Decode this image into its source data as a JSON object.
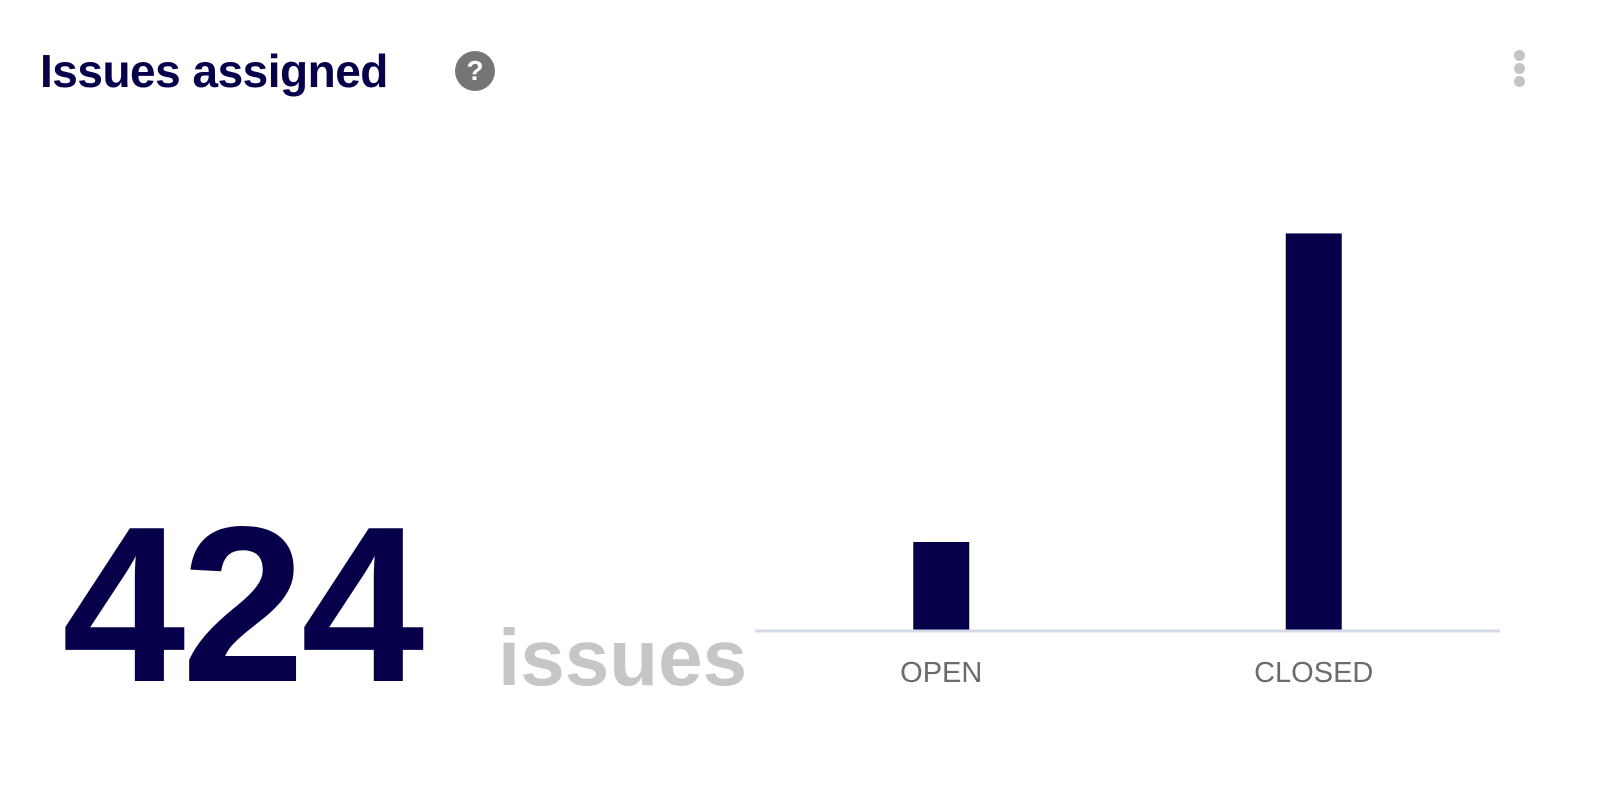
{
  "header": {
    "title": "Issues assigned",
    "help_icon": "question-circle-icon",
    "menu_icon": "kebab-menu-icon"
  },
  "summary": {
    "total": "424",
    "unit": "issues"
  },
  "colors": {
    "bar": "#06004b",
    "baseline": "#d3dae8",
    "label": "#6b6b6b",
    "unit": "#c6c6c6"
  },
  "chart_data": {
    "type": "bar",
    "categories": [
      "OPEN",
      "CLOSED"
    ],
    "values": [
      77,
      347
    ],
    "title": "",
    "xlabel": "",
    "ylabel": "",
    "ylim": [
      0,
      385
    ],
    "grid": false
  }
}
